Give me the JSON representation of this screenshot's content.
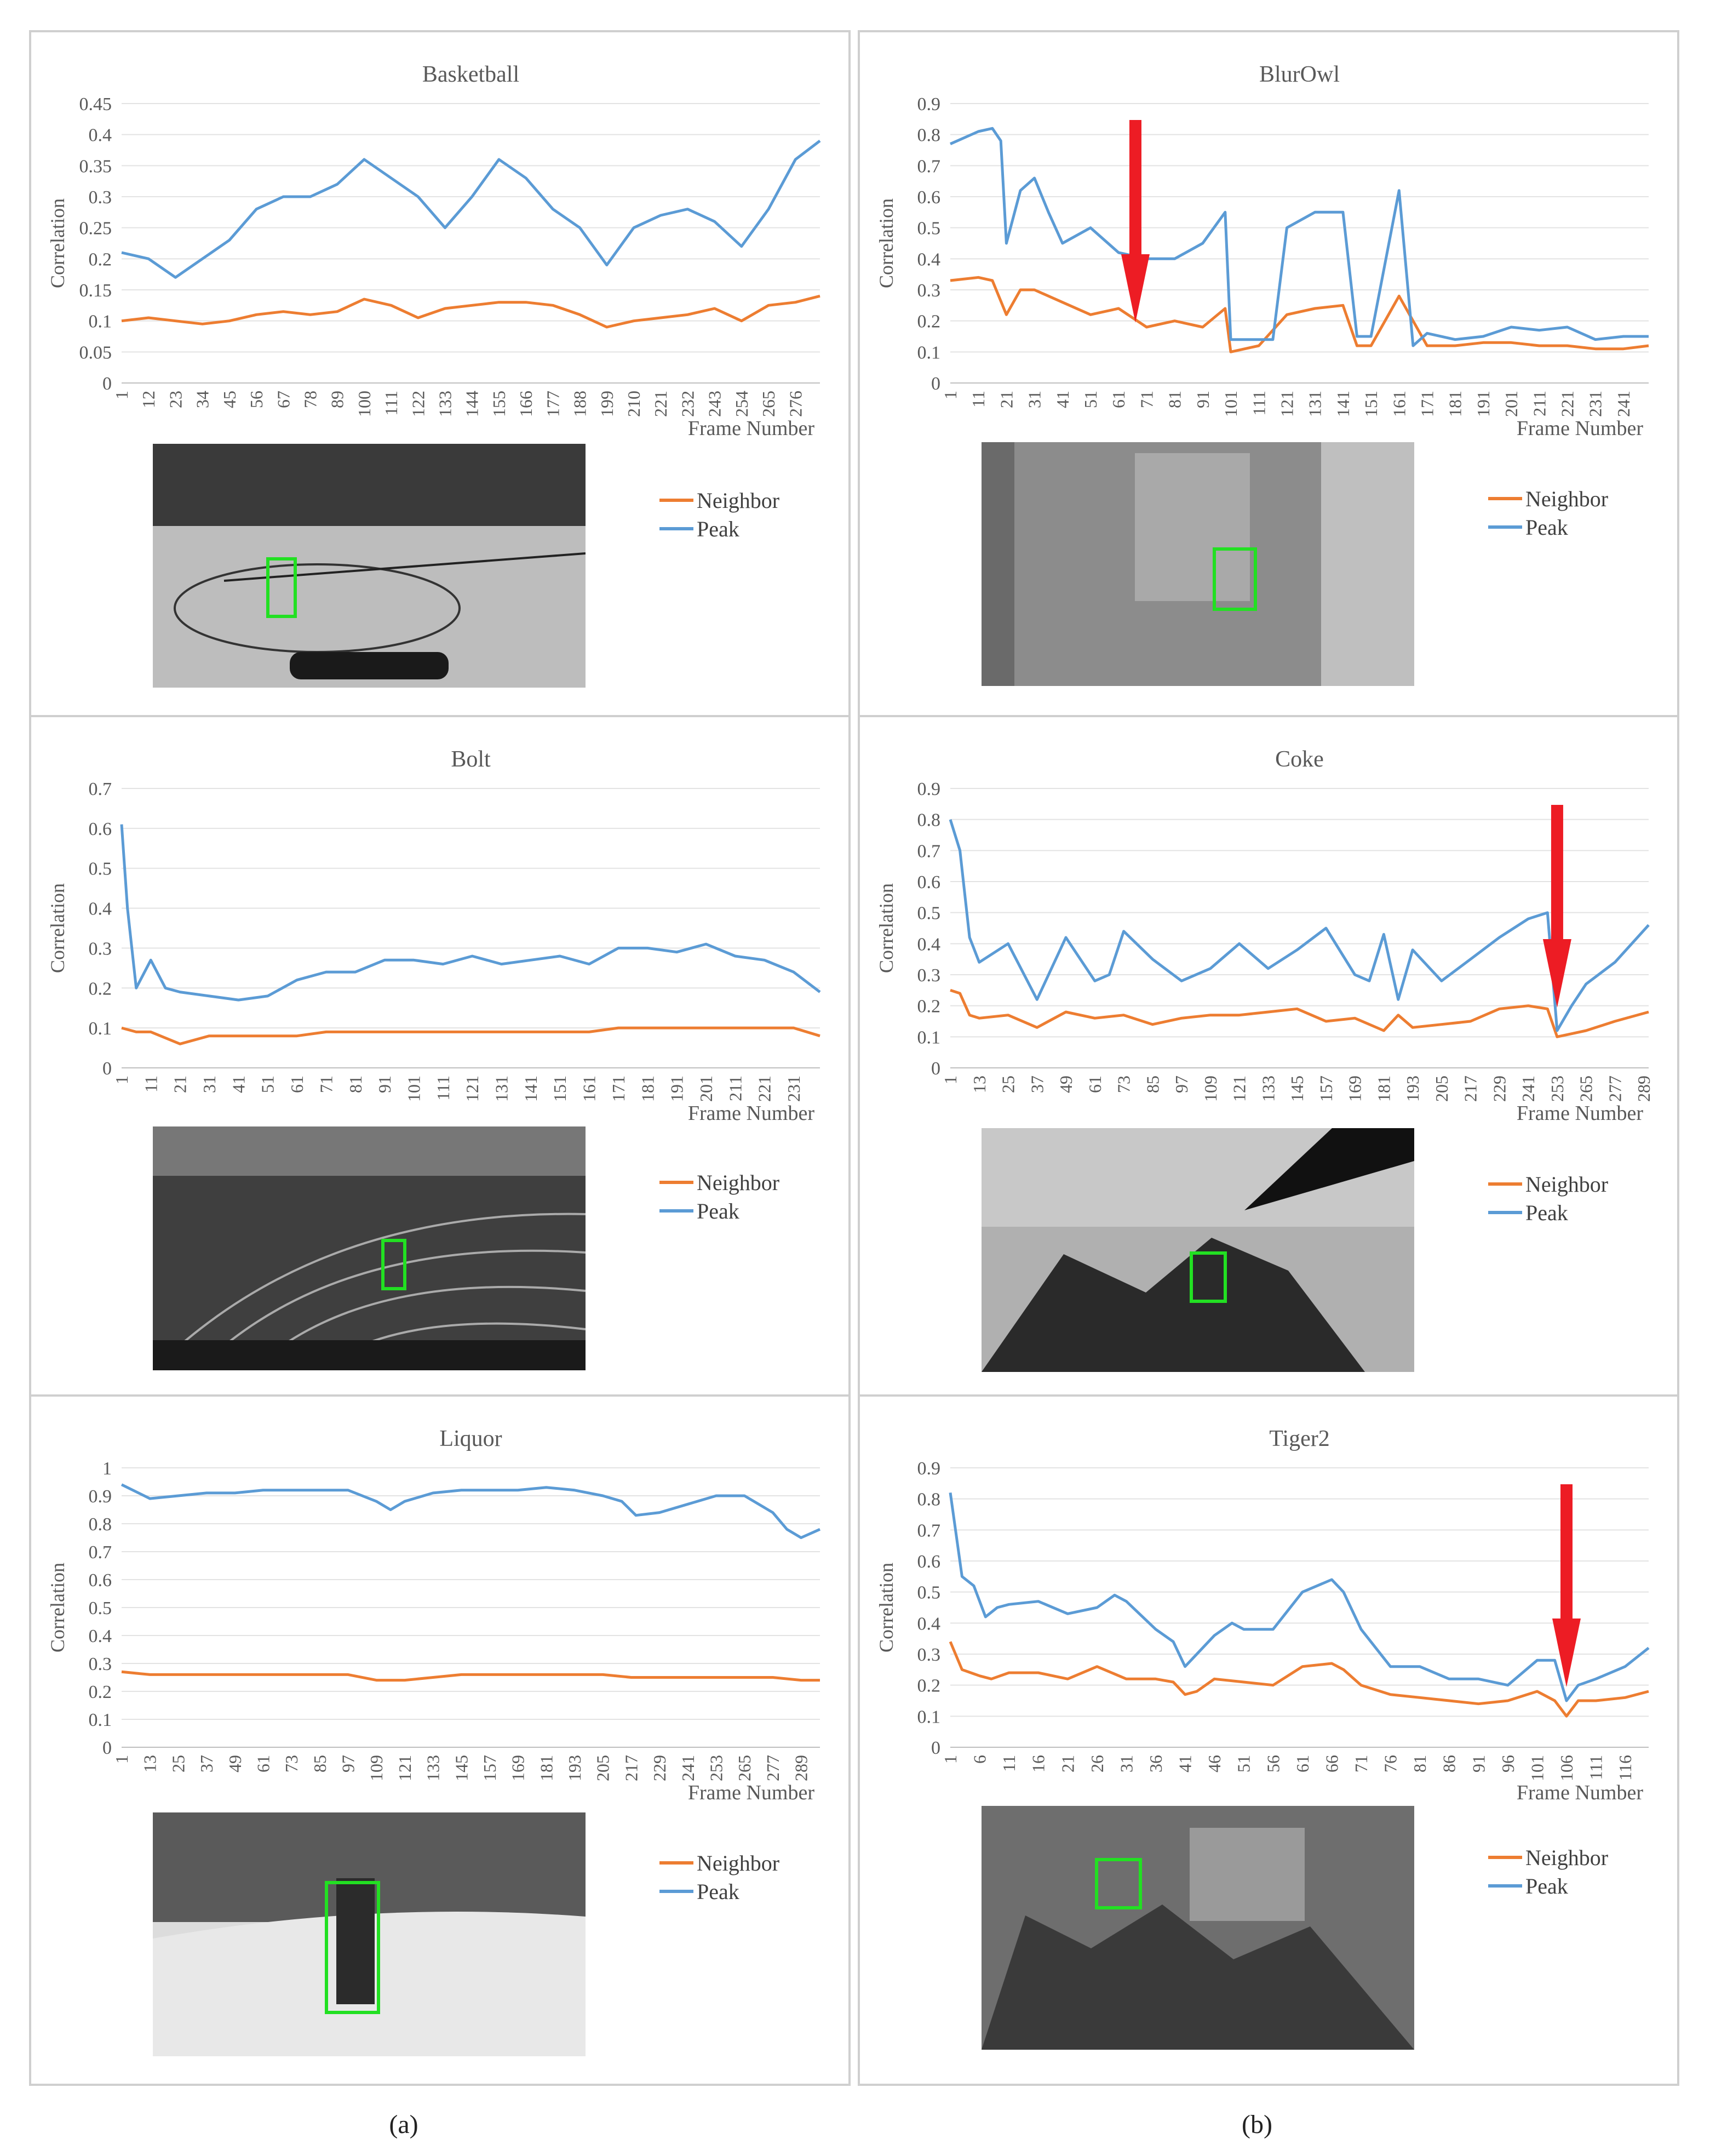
{
  "colors": {
    "neighbor": "#ED7D31",
    "peak": "#5B9BD5",
    "arrow": "#ED1C24",
    "box": "#22E022"
  },
  "captions": [
    "(a)",
    "(b)"
  ],
  "chart_data": [
    {
      "type": "line",
      "title": "Basketball",
      "ylabel": "Correlation",
      "xlabel": "Frame Number",
      "ylim": [
        0,
        0.45
      ],
      "yticks": [
        "0",
        "0.05",
        "0.1",
        "0.15",
        "0.2",
        "0.25",
        "0.3",
        "0.35",
        "0.4",
        "0.45"
      ],
      "categories": [
        "1",
        "12",
        "23",
        "34",
        "45",
        "56",
        "67",
        "78",
        "89",
        "100",
        "111",
        "122",
        "133",
        "144",
        "155",
        "166",
        "177",
        "188",
        "199",
        "210",
        "221",
        "232",
        "243",
        "254",
        "265",
        "276"
      ],
      "x_max": 286,
      "legend": [
        "Neighbor",
        "Peak"
      ],
      "series": [
        {
          "name": "Neighbor",
          "x": [
            1,
            12,
            23,
            34,
            45,
            56,
            67,
            78,
            89,
            100,
            111,
            122,
            133,
            144,
            155,
            166,
            177,
            188,
            199,
            210,
            221,
            232,
            243,
            254,
            265,
            276,
            286
          ],
          "values": [
            0.1,
            0.105,
            0.1,
            0.095,
            0.1,
            0.11,
            0.115,
            0.11,
            0.115,
            0.135,
            0.125,
            0.105,
            0.12,
            0.125,
            0.13,
            0.13,
            0.125,
            0.11,
            0.09,
            0.1,
            0.105,
            0.11,
            0.12,
            0.1,
            0.125,
            0.13,
            0.14
          ]
        },
        {
          "name": "Peak",
          "x": [
            1,
            12,
            23,
            34,
            45,
            56,
            67,
            78,
            89,
            100,
            111,
            122,
            133,
            144,
            155,
            166,
            177,
            188,
            199,
            210,
            221,
            232,
            243,
            254,
            265,
            276,
            286
          ],
          "values": [
            0.21,
            0.2,
            0.17,
            0.2,
            0.23,
            0.28,
            0.3,
            0.3,
            0.32,
            0.36,
            0.33,
            0.3,
            0.25,
            0.3,
            0.36,
            0.33,
            0.28,
            0.25,
            0.19,
            0.25,
            0.27,
            0.28,
            0.26,
            0.22,
            0.28,
            0.36,
            0.39
          ]
        }
      ]
    },
    {
      "type": "line",
      "title": "BlurOwl",
      "ylabel": "Correlation",
      "xlabel": "Frame Number",
      "ylim": [
        0,
        0.9
      ],
      "yticks": [
        "0",
        "0.1",
        "0.2",
        "0.3",
        "0.4",
        "0.5",
        "0.6",
        "0.7",
        "0.8",
        "0.9"
      ],
      "categories": [
        "1",
        "11",
        "21",
        "31",
        "41",
        "51",
        "61",
        "71",
        "81",
        "91",
        "101",
        "111",
        "121",
        "131",
        "141",
        "151",
        "161",
        "171",
        "181",
        "191",
        "201",
        "211",
        "221",
        "231",
        "241"
      ],
      "x_max": 250,
      "legend": [
        "Neighbor",
        "Peak"
      ],
      "arrow_at": 67,
      "series": [
        {
          "name": "Neighbor",
          "x": [
            1,
            11,
            16,
            21,
            26,
            31,
            41,
            51,
            61,
            71,
            81,
            91,
            99,
            101,
            111,
            121,
            131,
            141,
            146,
            151,
            161,
            171,
            181,
            191,
            201,
            211,
            221,
            231,
            241,
            250
          ],
          "values": [
            0.33,
            0.34,
            0.33,
            0.22,
            0.3,
            0.3,
            0.26,
            0.22,
            0.24,
            0.18,
            0.2,
            0.18,
            0.24,
            0.1,
            0.12,
            0.22,
            0.24,
            0.25,
            0.12,
            0.12,
            0.28,
            0.12,
            0.12,
            0.13,
            0.13,
            0.12,
            0.12,
            0.11,
            0.11,
            0.12
          ]
        },
        {
          "name": "Peak",
          "x": [
            1,
            11,
            16,
            19,
            21,
            26,
            31,
            36,
            41,
            51,
            61,
            71,
            81,
            91,
            99,
            101,
            111,
            116,
            121,
            131,
            141,
            146,
            151,
            161,
            166,
            171,
            181,
            191,
            201,
            211,
            221,
            231,
            241,
            250
          ],
          "values": [
            0.77,
            0.81,
            0.82,
            0.78,
            0.45,
            0.62,
            0.66,
            0.55,
            0.45,
            0.5,
            0.42,
            0.4,
            0.4,
            0.45,
            0.55,
            0.14,
            0.14,
            0.14,
            0.5,
            0.55,
            0.55,
            0.15,
            0.15,
            0.62,
            0.12,
            0.16,
            0.14,
            0.15,
            0.18,
            0.17,
            0.18,
            0.14,
            0.15,
            0.15
          ]
        }
      ]
    },
    {
      "type": "line",
      "title": "Bolt",
      "ylabel": "Correlation",
      "xlabel": "Frame Number",
      "ylim": [
        0,
        0.7
      ],
      "yticks": [
        "0",
        "0.1",
        "0.2",
        "0.3",
        "0.4",
        "0.5",
        "0.6",
        "0.7"
      ],
      "categories": [
        "1",
        "11",
        "21",
        "31",
        "41",
        "51",
        "61",
        "71",
        "81",
        "91",
        "101",
        "111",
        "121",
        "131",
        "141",
        "151",
        "161",
        "171",
        "181",
        "191",
        "201",
        "211",
        "221",
        "231"
      ],
      "x_max": 240,
      "legend": [
        "Neighbor",
        "Peak"
      ],
      "series": [
        {
          "name": "Neighbor",
          "x": [
            1,
            6,
            11,
            21,
            31,
            41,
            51,
            61,
            71,
            81,
            91,
            101,
            111,
            121,
            131,
            141,
            151,
            161,
            171,
            181,
            191,
            201,
            211,
            221,
            231,
            240
          ],
          "values": [
            0.1,
            0.09,
            0.09,
            0.06,
            0.08,
            0.08,
            0.08,
            0.08,
            0.09,
            0.09,
            0.09,
            0.09,
            0.09,
            0.09,
            0.09,
            0.09,
            0.09,
            0.09,
            0.1,
            0.1,
            0.1,
            0.1,
            0.1,
            0.1,
            0.1,
            0.08
          ]
        },
        {
          "name": "Peak",
          "x": [
            1,
            3,
            6,
            11,
            16,
            21,
            31,
            41,
            51,
            61,
            71,
            81,
            91,
            101,
            111,
            121,
            131,
            141,
            151,
            161,
            171,
            181,
            191,
            201,
            211,
            221,
            231,
            240
          ],
          "values": [
            0.61,
            0.4,
            0.2,
            0.27,
            0.2,
            0.19,
            0.18,
            0.17,
            0.18,
            0.22,
            0.24,
            0.24,
            0.27,
            0.27,
            0.26,
            0.28,
            0.26,
            0.27,
            0.28,
            0.26,
            0.3,
            0.3,
            0.29,
            0.31,
            0.28,
            0.27,
            0.24,
            0.19
          ]
        }
      ]
    },
    {
      "type": "line",
      "title": "Coke",
      "ylabel": "Correlation",
      "xlabel": "Frame Number",
      "ylim": [
        0,
        0.9
      ],
      "yticks": [
        "0",
        "0.1",
        "0.2",
        "0.3",
        "0.4",
        "0.5",
        "0.6",
        "0.7",
        "0.8",
        "0.9"
      ],
      "categories": [
        "1",
        "13",
        "25",
        "37",
        "49",
        "61",
        "73",
        "85",
        "97",
        "109",
        "121",
        "133",
        "145",
        "157",
        "169",
        "181",
        "193",
        "205",
        "217",
        "229",
        "241",
        "253",
        "265",
        "277",
        "289"
      ],
      "x_max": 291,
      "legend": [
        "Neighbor",
        "Peak"
      ],
      "arrow_at": 253,
      "series": [
        {
          "name": "Neighbor",
          "x": [
            1,
            5,
            9,
            13,
            25,
            37,
            49,
            61,
            73,
            85,
            97,
            109,
            121,
            133,
            145,
            157,
            169,
            181,
            187,
            193,
            205,
            217,
            229,
            241,
            249,
            253,
            259,
            265,
            277,
            291
          ],
          "values": [
            0.25,
            0.24,
            0.17,
            0.16,
            0.17,
            0.13,
            0.18,
            0.16,
            0.17,
            0.14,
            0.16,
            0.17,
            0.17,
            0.18,
            0.19,
            0.15,
            0.16,
            0.12,
            0.17,
            0.13,
            0.14,
            0.15,
            0.19,
            0.2,
            0.19,
            0.1,
            0.11,
            0.12,
            0.15,
            0.18
          ]
        },
        {
          "name": "Peak",
          "x": [
            1,
            5,
            9,
            13,
            25,
            37,
            49,
            61,
            67,
            73,
            85,
            97,
            109,
            121,
            133,
            145,
            157,
            169,
            175,
            181,
            187,
            193,
            205,
            217,
            229,
            241,
            249,
            253,
            259,
            265,
            277,
            291
          ],
          "values": [
            0.8,
            0.7,
            0.42,
            0.34,
            0.4,
            0.22,
            0.42,
            0.28,
            0.3,
            0.44,
            0.35,
            0.28,
            0.32,
            0.4,
            0.32,
            0.38,
            0.45,
            0.3,
            0.28,
            0.43,
            0.22,
            0.38,
            0.28,
            0.35,
            0.42,
            0.48,
            0.5,
            0.12,
            0.2,
            0.27,
            0.34,
            0.46
          ]
        }
      ]
    },
    {
      "type": "line",
      "title": "Liquor",
      "ylabel": "Correlation",
      "xlabel": "Frame Number",
      "ylim": [
        0,
        1
      ],
      "yticks": [
        "0",
        "0.1",
        "0.2",
        "0.3",
        "0.4",
        "0.5",
        "0.6",
        "0.7",
        "0.8",
        "0.9",
        "1"
      ],
      "categories": [
        "1",
        "13",
        "25",
        "37",
        "49",
        "61",
        "73",
        "85",
        "97",
        "109",
        "121",
        "133",
        "145",
        "157",
        "169",
        "181",
        "193",
        "205",
        "217",
        "229",
        "241",
        "253",
        "265",
        "277",
        "289"
      ],
      "x_max": 297,
      "legend": [
        "Neighbor",
        "Peak"
      ],
      "series": [
        {
          "name": "Neighbor",
          "x": [
            1,
            13,
            25,
            37,
            49,
            61,
            73,
            85,
            97,
            109,
            121,
            133,
            145,
            157,
            169,
            181,
            193,
            205,
            217,
            229,
            241,
            253,
            265,
            277,
            289,
            297
          ],
          "values": [
            0.27,
            0.26,
            0.26,
            0.26,
            0.26,
            0.26,
            0.26,
            0.26,
            0.26,
            0.24,
            0.24,
            0.25,
            0.26,
            0.26,
            0.26,
            0.26,
            0.26,
            0.26,
            0.25,
            0.25,
            0.25,
            0.25,
            0.25,
            0.25,
            0.24,
            0.24
          ]
        },
        {
          "name": "Peak",
          "x": [
            1,
            13,
            25,
            37,
            49,
            61,
            73,
            85,
            97,
            109,
            115,
            121,
            133,
            145,
            157,
            169,
            181,
            193,
            205,
            213,
            219,
            229,
            241,
            253,
            265,
            277,
            283,
            289,
            297
          ],
          "values": [
            0.94,
            0.89,
            0.9,
            0.91,
            0.91,
            0.92,
            0.92,
            0.92,
            0.92,
            0.88,
            0.85,
            0.88,
            0.91,
            0.92,
            0.92,
            0.92,
            0.93,
            0.92,
            0.9,
            0.88,
            0.83,
            0.84,
            0.87,
            0.9,
            0.9,
            0.84,
            0.78,
            0.75,
            0.78
          ]
        }
      ]
    },
    {
      "type": "line",
      "title": "Tiger2",
      "ylabel": "Correlation",
      "xlabel": "Frame Number",
      "ylim": [
        0,
        0.9
      ],
      "yticks": [
        "0",
        "0.1",
        "0.2",
        "0.3",
        "0.4",
        "0.5",
        "0.6",
        "0.7",
        "0.8",
        "0.9"
      ],
      "categories": [
        "1",
        "6",
        "11",
        "16",
        "21",
        "26",
        "31",
        "36",
        "41",
        "46",
        "51",
        "56",
        "61",
        "66",
        "71",
        "76",
        "81",
        "86",
        "91",
        "96",
        "101",
        "106",
        "111",
        "116"
      ],
      "x_max": 120,
      "legend": [
        "Neighbor",
        "Peak"
      ],
      "arrow_at": 106,
      "series": [
        {
          "name": "Neighbor",
          "x": [
            1,
            3,
            6,
            8,
            11,
            16,
            21,
            26,
            31,
            36,
            39,
            41,
            43,
            46,
            51,
            56,
            61,
            66,
            68,
            71,
            76,
            81,
            86,
            91,
            96,
            101,
            104,
            106,
            108,
            111,
            116,
            120
          ],
          "values": [
            0.34,
            0.25,
            0.23,
            0.22,
            0.24,
            0.24,
            0.22,
            0.26,
            0.22,
            0.22,
            0.21,
            0.17,
            0.18,
            0.22,
            0.21,
            0.2,
            0.26,
            0.27,
            0.25,
            0.2,
            0.17,
            0.16,
            0.15,
            0.14,
            0.15,
            0.18,
            0.15,
            0.1,
            0.15,
            0.15,
            0.16,
            0.18
          ]
        },
        {
          "name": "Peak",
          "x": [
            1,
            3,
            5,
            7,
            9,
            11,
            16,
            21,
            26,
            29,
            31,
            36,
            39,
            41,
            43,
            46,
            49,
            51,
            56,
            61,
            66,
            68,
            71,
            76,
            81,
            86,
            91,
            96,
            101,
            104,
            106,
            108,
            111,
            116,
            120
          ],
          "values": [
            0.82,
            0.55,
            0.52,
            0.42,
            0.45,
            0.46,
            0.47,
            0.43,
            0.45,
            0.49,
            0.47,
            0.38,
            0.34,
            0.26,
            0.3,
            0.36,
            0.4,
            0.38,
            0.38,
            0.5,
            0.54,
            0.5,
            0.38,
            0.26,
            0.26,
            0.22,
            0.22,
            0.2,
            0.28,
            0.28,
            0.15,
            0.2,
            0.22,
            0.26,
            0.32
          ]
        }
      ]
    }
  ]
}
